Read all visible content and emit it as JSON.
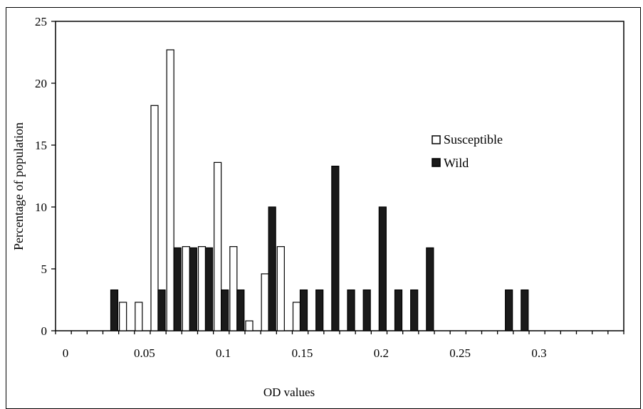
{
  "chart_data": {
    "type": "bar",
    "title": "",
    "xlabel": "OD values",
    "ylabel": "Percentage of population",
    "ylim": [
      0,
      25
    ],
    "yticks": [
      "0",
      "5",
      "10",
      "15",
      "20",
      "25"
    ],
    "xticks": [
      "0",
      "0.05",
      "0.1",
      "0.15",
      "0.2",
      "0.25",
      "0.3"
    ],
    "bin_width": 0.01,
    "bin_starts": [
      0,
      0.01,
      0.02,
      0.03,
      0.04,
      0.05,
      0.06,
      0.07,
      0.08,
      0.09,
      0.1,
      0.11,
      0.12,
      0.13,
      0.14,
      0.15,
      0.16,
      0.17,
      0.18,
      0.19,
      0.2,
      0.21,
      0.22,
      0.23,
      0.24,
      0.25,
      0.26,
      0.27,
      0.28,
      0.29,
      0.3,
      0.31,
      0.32,
      0.33,
      0.34,
      0.35
    ],
    "series": [
      {
        "name": "Susceptible",
        "color": "#ffffff",
        "values": [
          0,
          0,
          0,
          0,
          2.3,
          2.3,
          18.2,
          22.7,
          6.8,
          6.8,
          13.6,
          6.8,
          0.8,
          4.6,
          6.8,
          2.3,
          0,
          0,
          0,
          0,
          0,
          0,
          0,
          0,
          0,
          0,
          0,
          0,
          0,
          0,
          0,
          0,
          0,
          0,
          0,
          0
        ]
      },
      {
        "name": "Wild",
        "color": "#1a1a1a",
        "values": [
          0,
          0,
          0,
          3.3,
          0,
          0,
          3.3,
          6.7,
          6.7,
          6.7,
          3.3,
          3.3,
          0,
          10,
          0,
          3.3,
          3.3,
          13.3,
          3.3,
          3.3,
          10,
          3.3,
          3.3,
          6.7,
          0,
          0,
          0,
          0,
          3.3,
          3.3,
          0,
          0,
          0,
          0,
          0,
          0
        ]
      }
    ],
    "legend": {
      "position": "right",
      "labels": [
        "Susceptible",
        "Wild"
      ]
    },
    "grid": false
  }
}
